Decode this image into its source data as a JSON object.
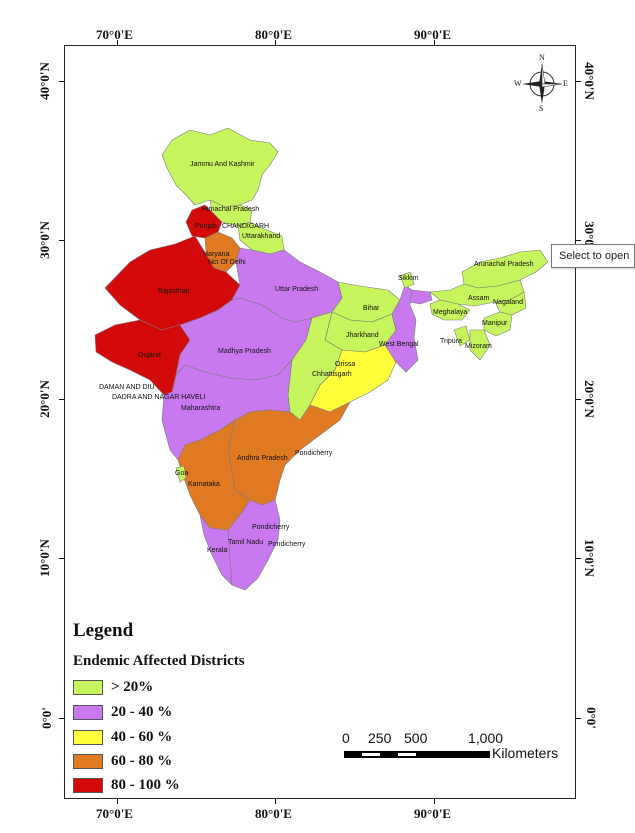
{
  "map": {
    "longitude_labels": [
      "70°0'E",
      "80°0'E",
      "90°0'E"
    ],
    "latitude_labels": [
      "40°0'N",
      "30°0'N",
      "20°0'N",
      "10°0'N",
      "0°0'"
    ]
  },
  "compass": {
    "n": "N",
    "s": "S",
    "e": "E",
    "w": "W"
  },
  "state_labels": {
    "jammu_kashmir": "Jammu And Kashmir",
    "himachal": "Himachal Pradesh",
    "punjab": "Punjab",
    "chandigarh": "CHANDIGARH",
    "uttarakhand": "Uttarakhand",
    "haryana": "Haryana",
    "delhi": "Nct Of Delhi",
    "rajasthan": "Rajasthan",
    "uttar_pradesh": "Uttar Pradesh",
    "sikkim": "Sikkim",
    "arunachal": "Arunachal Pradesh",
    "assam": "Assam",
    "nagaland": "Nagaland",
    "meghalaya": "Meghalaya",
    "manipur": "Manipur",
    "tripura": "Tripura",
    "mizoram": "Mizoram",
    "bihar": "Bihar",
    "jharkhand": "Jharkhand",
    "west_bengal": "West Bengal",
    "gujarat": "Gujarat",
    "madhya_pradesh": "Madhya Pradesh",
    "chhattisgarh": "Chhattisgarh",
    "orissa": "Orissa",
    "daman_diu": "DAMAN AND DIU",
    "dadra": "DADRA AND NAGAR HAVELI",
    "maharashtra": "Maharashtra",
    "andhra": "Andhra Pradesh",
    "pondicherry_1": "Pondicherry",
    "goa": "Goa",
    "karnataka": "Karnataka",
    "pondicherry_2": "Pondicherry",
    "tamil_nadu": "Tamil Nadu",
    "pondicherry_3": "Pondicherry",
    "kerala": "Kerala"
  },
  "legend": {
    "title": "Legend",
    "subtitle": "Endemic Affected Districts",
    "items": [
      {
        "label": "> 20%",
        "color": "#c6f55e"
      },
      {
        "label": "20 - 40 %",
        "color": "#c879f0"
      },
      {
        "label": "40 - 60 %",
        "color": "#ffff3c"
      },
      {
        "label": "60 - 80 %",
        "color": "#e07a22"
      },
      {
        "label": "80 - 100 %",
        "color": "#d40a0a"
      }
    ]
  },
  "scale": {
    "ticks": [
      "0",
      "250",
      "500",
      "1,000"
    ],
    "unit": "Kilometers"
  },
  "tooltip": "Select to open"
}
